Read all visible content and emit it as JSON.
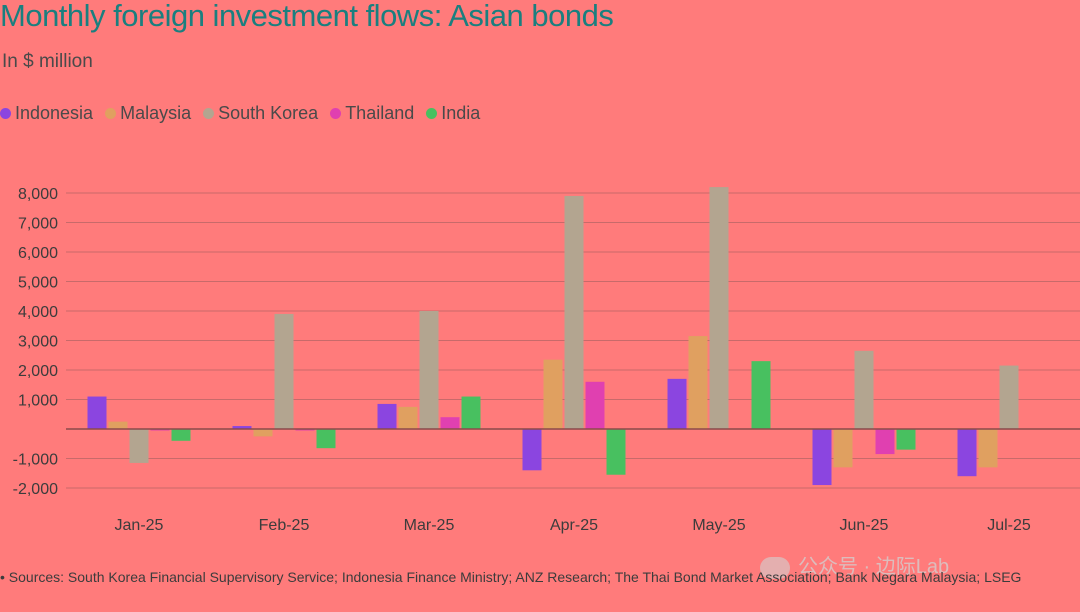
{
  "title": "Monthly foreign investment flows: Asian bonds",
  "subtitle": "In $ million",
  "source": "• Sources: South Korea Financial Supervisory Service; Indonesia Finance Ministry; ANZ Research; The Thai Bond Market Association; Bank Negara Malaysia; LSEG",
  "watermark": "公众号 · 边际Lab",
  "chart_data": {
    "type": "bar",
    "categories": [
      "Jan-25",
      "Feb-25",
      "Mar-25",
      "Apr-25",
      "May-25",
      "Jun-25",
      "Jul-25"
    ],
    "series": [
      {
        "name": "Indonesia",
        "color": "#8b45e0",
        "values": [
          1100,
          100,
          850,
          -1400,
          1700,
          -1900,
          -1600
        ]
      },
      {
        "name": "Malaysia",
        "color": "#e0a060",
        "values": [
          250,
          -250,
          750,
          2350,
          3150,
          -1300,
          -1300
        ]
      },
      {
        "name": "South Korea",
        "color": "#b3a590",
        "values": [
          -1150,
          3900,
          4000,
          7900,
          8200,
          2650,
          2150
        ]
      },
      {
        "name": "Thailand",
        "color": "#e040b0",
        "values": [
          -50,
          -50,
          400,
          1600,
          0,
          -850,
          0
        ]
      },
      {
        "name": "India",
        "color": "#48c060",
        "values": [
          -400,
          -650,
          1100,
          -1550,
          2300,
          -700,
          0
        ]
      }
    ],
    "yticks": [
      8000,
      7000,
      6000,
      5000,
      4000,
      3000,
      2000,
      1000,
      -1000,
      -2000
    ],
    "ytick_labels": [
      "8,000",
      "7,000",
      "6,000",
      "5,000",
      "4,000",
      "3,000",
      "2,000",
      "1,000",
      "-1,000",
      "-2,000"
    ],
    "ylim": [
      -2000,
      8000
    ],
    "legend_position": "top-left",
    "grid": true
  }
}
